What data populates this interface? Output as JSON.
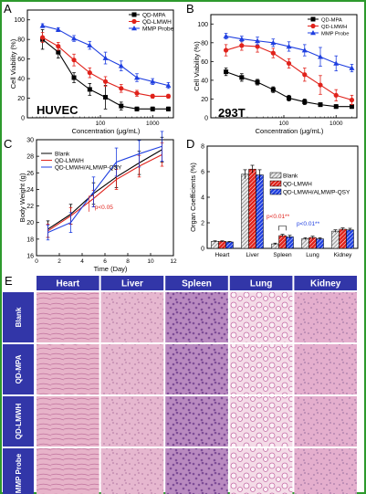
{
  "colors": {
    "frame": "#2d9a2d",
    "black": "#000000",
    "red": "#e0221b",
    "blue": "#1f3fe0",
    "table_header": "#3236a8",
    "tissue_pink": "#e7b6cf",
    "tissue_purple": "#a778b4"
  },
  "panel_letters": [
    "A",
    "B",
    "C",
    "D",
    "E"
  ],
  "chart_data": [
    {
      "id": "A",
      "type": "line",
      "xlabel": "Concentration (μg/mL)",
      "ylabel": "Cell Viability (%)",
      "xscale": "log",
      "xlim": [
        4,
        2500
      ],
      "ylim": [
        0,
        110
      ],
      "xticks": [
        100,
        1000
      ],
      "xticklabels": [
        "100",
        "1000"
      ],
      "yticks": [
        0,
        20,
        40,
        60,
        80,
        100
      ],
      "yticklabels": [
        "0",
        "20",
        "40",
        "60",
        "80",
        "100"
      ],
      "annotation": "HUVEC",
      "legend_position": "top-right",
      "x": [
        7.8,
        15.6,
        31.2,
        62.5,
        125,
        250,
        500,
        1000,
        2000
      ],
      "series": [
        {
          "name": "QD-MPA",
          "color": "#000000",
          "marker": "square",
          "values": [
            80,
            67,
            41,
            29,
            21,
            12,
            9,
            9,
            9
          ],
          "errors": [
            10,
            6,
            5,
            6,
            12,
            4,
            2,
            2,
            2
          ]
        },
        {
          "name": "QD-LMWH",
          "color": "#e0221b",
          "marker": "circle",
          "values": [
            82,
            73,
            59,
            46,
            37,
            30,
            25,
            22,
            22
          ],
          "errors": [
            5,
            4,
            6,
            5,
            5,
            4,
            3,
            2,
            2
          ]
        },
        {
          "name": "MMP Probe",
          "color": "#1f3fe0",
          "marker": "triangle",
          "values": [
            94,
            90,
            81,
            74,
            61,
            53,
            41,
            37,
            33
          ],
          "errors": [
            2,
            2,
            3,
            4,
            6,
            5,
            4,
            3,
            3
          ]
        }
      ]
    },
    {
      "id": "B",
      "type": "line",
      "xlabel": "Concentration (μg/mL)",
      "ylabel": "Cell Viability (%)",
      "xscale": "log",
      "xlim": [
        4,
        2500
      ],
      "ylim": [
        0,
        110
      ],
      "xticks": [
        100,
        1000
      ],
      "xticklabels": [
        "100",
        "1000"
      ],
      "yticks": [
        0,
        20,
        40,
        60,
        80,
        100
      ],
      "yticklabels": [
        "0",
        "20",
        "40",
        "60",
        "80",
        "100"
      ],
      "annotation": "293T",
      "legend_position": "top-right",
      "x": [
        7.8,
        15.6,
        31.2,
        62.5,
        125,
        250,
        500,
        1000,
        2000
      ],
      "series": [
        {
          "name": "QD-MPA",
          "color": "#000000",
          "marker": "square",
          "values": [
            49,
            43,
            38,
            30,
            21,
            17,
            14,
            12,
            12
          ],
          "errors": [
            4,
            4,
            3,
            3,
            3,
            3,
            2,
            2,
            2
          ]
        },
        {
          "name": "QD-LMWH",
          "color": "#e0221b",
          "marker": "circle",
          "values": [
            72,
            77,
            76,
            69,
            58,
            46,
            35,
            24,
            19
          ],
          "errors": [
            6,
            5,
            6,
            5,
            5,
            7,
            10,
            6,
            5
          ]
        },
        {
          "name": "MMP Probe",
          "color": "#1f3fe0",
          "marker": "triangle",
          "values": [
            87,
            84,
            82,
            80,
            76,
            72,
            65,
            58,
            53
          ],
          "errors": [
            3,
            3,
            4,
            4,
            5,
            6,
            10,
            8,
            4
          ]
        }
      ]
    },
    {
      "id": "C",
      "type": "line",
      "xlabel": "Time (Day)",
      "ylabel": "Body Weight (g)",
      "xlim": [
        0,
        12
      ],
      "ylim": [
        16,
        30
      ],
      "xticks": [
        0,
        2,
        4,
        6,
        8,
        10,
        12
      ],
      "xticklabels": [
        "0",
        "2",
        "4",
        "6",
        "8",
        "10",
        "12"
      ],
      "yticks": [
        16,
        18,
        20,
        22,
        24,
        26,
        28,
        30
      ],
      "yticklabels": [
        "16",
        "18",
        "20",
        "22",
        "24",
        "26",
        "28",
        "30"
      ],
      "annotation": "p<0.05",
      "annotation_color": "#e0221b",
      "legend_position": "top-left",
      "series": [
        {
          "name": "Blank",
          "color": "#000000",
          "x": [
            1,
            3,
            5,
            7,
            9,
            11
          ],
          "values": [
            19.2,
            21.0,
            23.5,
            25.5,
            27.2,
            28.8
          ],
          "errors": [
            1.0,
            1.2,
            1.3,
            1.3,
            1.4,
            1.5
          ]
        },
        {
          "name": "QD-LMWH",
          "color": "#e0221b",
          "x": [
            1,
            3,
            5,
            7,
            9,
            11
          ],
          "values": [
            19.0,
            20.8,
            22.9,
            25.2,
            26.8,
            28.2
          ],
          "errors": [
            0.8,
            1.0,
            1.0,
            1.2,
            1.3,
            1.4
          ]
        },
        {
          "name": "QD-LMWH/ALMWP-QSY",
          "color": "#1f3fe0",
          "x": [
            1,
            3,
            5,
            7,
            9,
            11
          ],
          "values": [
            18.8,
            20.0,
            23.7,
            27.3,
            28.3,
            29.2
          ],
          "errors": [
            0.9,
            1.2,
            1.8,
            1.7,
            1.6,
            1.8
          ]
        }
      ]
    },
    {
      "id": "D",
      "type": "bar",
      "xlabel": "",
      "ylabel": "Organ Coefficients (%)",
      "categories": [
        "Heart",
        "Liver",
        "Spleen",
        "Lung",
        "Kidney"
      ],
      "ylim": [
        0,
        8
      ],
      "yticks": [
        0,
        2,
        4,
        6,
        8
      ],
      "yticklabels": [
        "0",
        "2",
        "4",
        "6",
        "8"
      ],
      "legend_position": "center-right",
      "series": [
        {
          "name": "Blank",
          "color": "#e9e9e9",
          "values": [
            0.55,
            5.8,
            0.35,
            0.75,
            1.35
          ],
          "errors": [
            0.04,
            0.35,
            0.06,
            0.08,
            0.1
          ]
        },
        {
          "name": "QD-LMWH",
          "color": "#e0221b",
          "values": [
            0.55,
            6.2,
            1.0,
            0.85,
            1.5
          ],
          "errors": [
            0.04,
            0.3,
            0.1,
            0.1,
            0.1
          ]
        },
        {
          "name": "QD-LMWH/ALMWP-QSY",
          "color": "#1f3fe0",
          "values": [
            0.5,
            5.75,
            0.9,
            0.75,
            1.45
          ],
          "errors": [
            0.04,
            0.4,
            0.12,
            0.08,
            0.12
          ]
        }
      ],
      "annotations": [
        {
          "text": "p<0.01**",
          "color": "#e0221b"
        },
        {
          "text": "p<0.01**",
          "color": "#1f3fe0"
        }
      ]
    },
    {
      "id": "E",
      "type": "table",
      "columns": [
        "Heart",
        "Liver",
        "Spleen",
        "Lung",
        "Kidney"
      ],
      "rows": [
        "Blank",
        "QD-MPA",
        "QD-LMWH",
        "MMP Probe"
      ]
    }
  ]
}
